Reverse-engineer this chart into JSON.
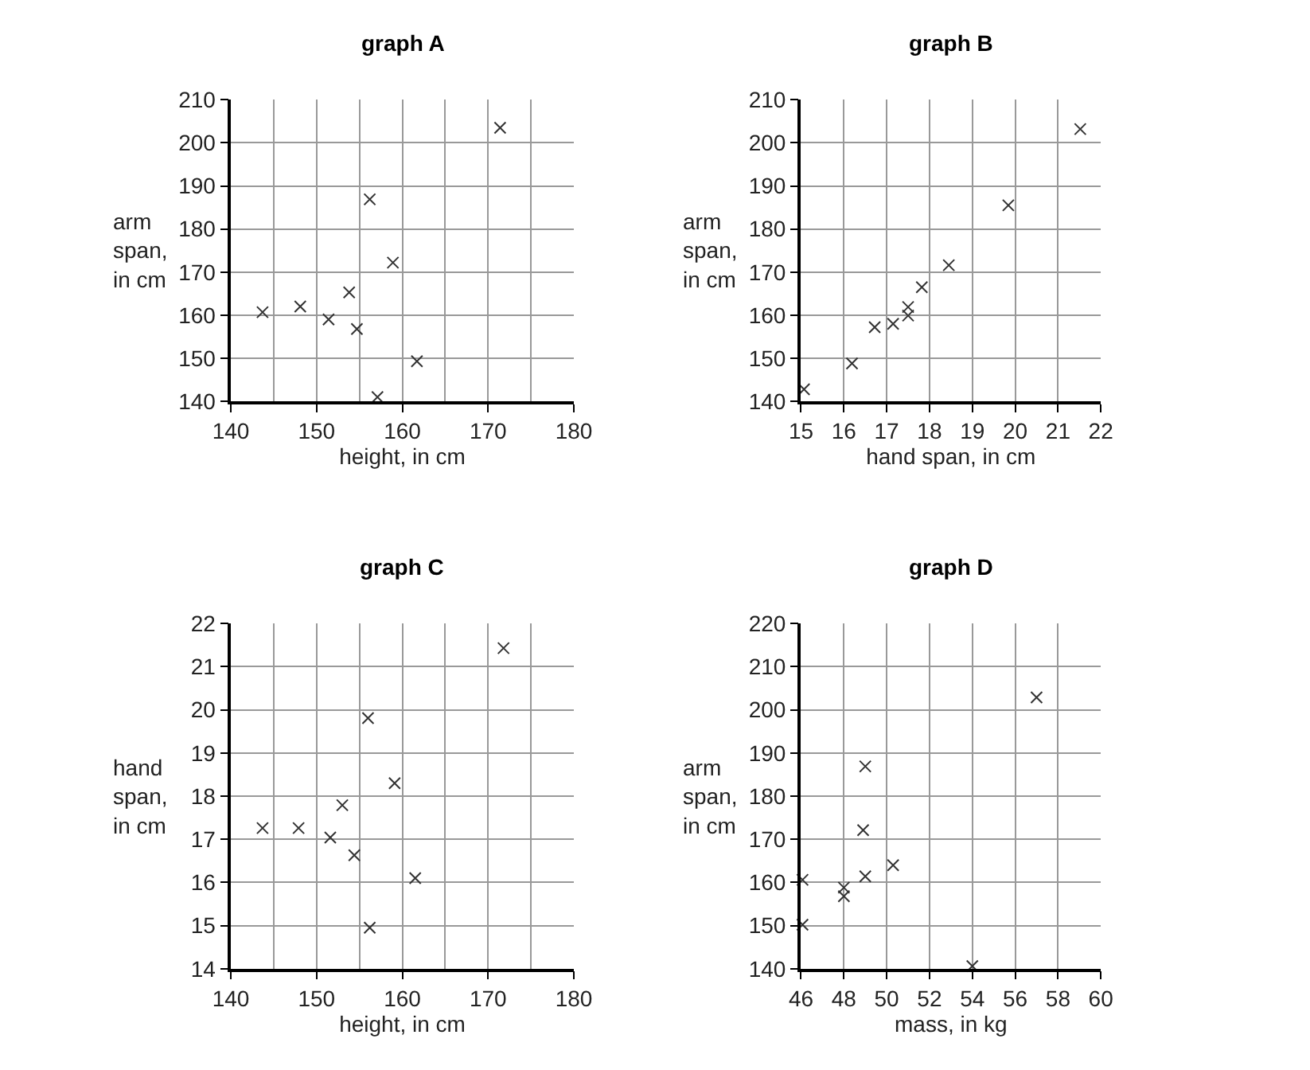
{
  "chart_data": [
    {
      "type": "scatter",
      "title": "graph A",
      "xlabel": "height, in cm",
      "ylabel": "arm span, in cm",
      "marker": "cross",
      "grid": true,
      "xlim": [
        140,
        180
      ],
      "ylim": [
        140,
        210
      ],
      "xticks": [
        140,
        {
          "value": 145,
          "label": null
        },
        150,
        {
          "value": 155,
          "label": null
        },
        160,
        {
          "value": 165,
          "label": null
        },
        170,
        {
          "value": 175,
          "label": null
        },
        180
      ],
      "yticks": [
        140,
        150,
        160,
        170,
        180,
        190,
        200,
        210
      ],
      "series": [
        {
          "color": "#333333",
          "x": [
            143.7,
            148.1,
            151.4,
            153.8,
            154.7,
            156.2,
            158.9,
            157.1,
            161.7,
            171.4
          ],
          "values": [
            160.7,
            162.0,
            159.0,
            165.3,
            156.8,
            186.9,
            172.2,
            141.0,
            149.3,
            203.5
          ]
        }
      ]
    },
    {
      "type": "scatter",
      "title": "graph B",
      "xlabel": "hand span, in cm",
      "ylabel": "arm span, in cm",
      "marker": "cross",
      "grid": true,
      "xlim": [
        15,
        22
      ],
      "ylim": [
        140,
        210
      ],
      "xticks": [
        15,
        16,
        17,
        18,
        19,
        20,
        21,
        22
      ],
      "yticks": [
        140,
        150,
        160,
        170,
        180,
        190,
        200,
        210
      ],
      "series": [
        {
          "color": "#333333",
          "x": [
            15.07,
            16.19,
            16.72,
            17.15,
            17.5,
            17.5,
            17.82,
            18.45,
            19.84,
            21.52
          ],
          "values": [
            142.8,
            148.8,
            157.2,
            158.0,
            161.9,
            159.9,
            166.5,
            171.6,
            185.5,
            203.2
          ]
        }
      ]
    },
    {
      "type": "scatter",
      "title": "graph C",
      "xlabel": "height, in cm",
      "ylabel": "hand span, in cm",
      "marker": "cross",
      "grid": true,
      "xlim": [
        140,
        180
      ],
      "ylim": [
        14,
        22
      ],
      "xticks": [
        140,
        {
          "value": 145,
          "label": null
        },
        150,
        {
          "value": 155,
          "label": null
        },
        160,
        {
          "value": 165,
          "label": null
        },
        170,
        {
          "value": 175,
          "label": null
        },
        180
      ],
      "yticks": [
        14,
        15,
        16,
        17,
        18,
        19,
        20,
        21,
        22
      ],
      "series": [
        {
          "color": "#333333",
          "x": [
            143.7,
            147.9,
            151.6,
            153.0,
            154.4,
            156.0,
            159.1,
            156.2,
            161.5,
            171.8
          ],
          "values": [
            17.26,
            17.26,
            17.04,
            17.79,
            16.63,
            19.81,
            18.3,
            14.95,
            16.1,
            21.43
          ]
        }
      ]
    },
    {
      "type": "scatter",
      "title": "graph D",
      "xlabel": "mass, in kg",
      "ylabel": "arm span, in cm",
      "marker": "cross",
      "grid": true,
      "xlim": [
        46,
        60
      ],
      "ylim": [
        140,
        220
      ],
      "xticks": [
        46,
        48,
        50,
        52,
        54,
        56,
        58,
        60
      ],
      "yticks": [
        140,
        150,
        160,
        170,
        180,
        190,
        200,
        210,
        220
      ],
      "series": [
        {
          "color": "#333333",
          "x": [
            46.07,
            46.07,
            48.0,
            48.0,
            49.0,
            48.9,
            49.0,
            50.3,
            54.0,
            57.0
          ],
          "values": [
            160.6,
            150.2,
            158.8,
            156.8,
            186.9,
            172.1,
            161.4,
            164.0,
            140.6,
            202.9
          ]
        }
      ]
    }
  ]
}
